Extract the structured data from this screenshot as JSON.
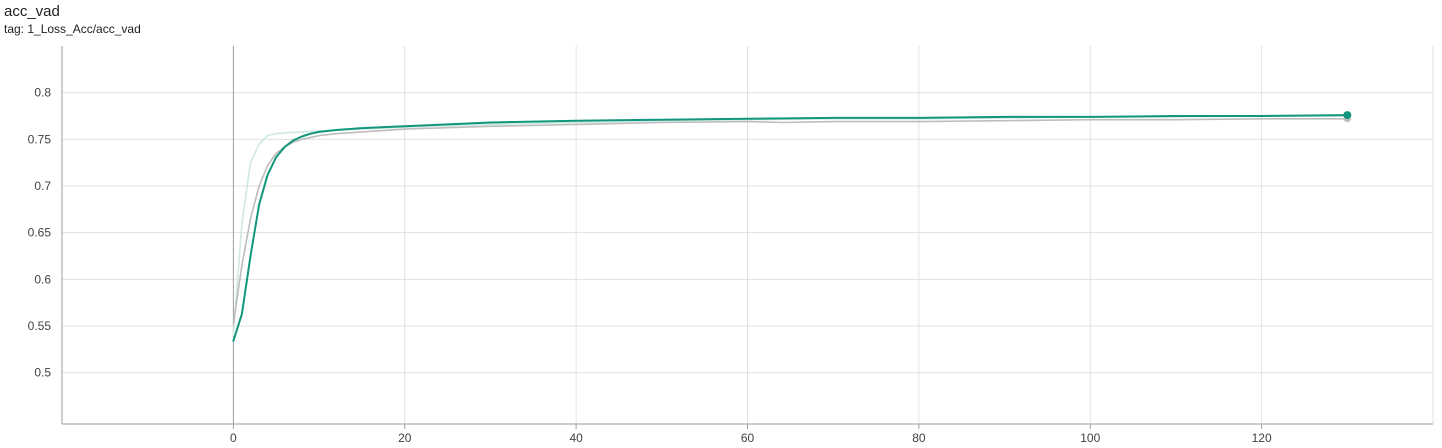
{
  "card": {
    "title": "acc_vad",
    "tag": "tag: 1_Loss_Acc/acc_vad"
  },
  "chart_data": {
    "type": "line",
    "title": "acc_vad",
    "xlabel": "",
    "ylabel": "",
    "xlim": [
      -20,
      140
    ],
    "ylim": [
      0.445,
      0.85
    ],
    "x_ticks": [
      0,
      20,
      40,
      60,
      80,
      100,
      120
    ],
    "y_ticks": [
      0.5,
      0.55,
      0.6,
      0.65,
      0.7,
      0.75,
      0.8
    ],
    "grid": true,
    "series": [
      {
        "role": "raw",
        "color": "#cfe9e3",
        "x": [
          0,
          1,
          2,
          3,
          4,
          5,
          6,
          8,
          10,
          15,
          20,
          30,
          40,
          50,
          60,
          70,
          80,
          90,
          100,
          110,
          120,
          130
        ],
        "y": [
          0.54,
          0.66,
          0.725,
          0.745,
          0.754,
          0.756,
          0.757,
          0.758,
          0.759,
          0.761,
          0.763,
          0.766,
          0.768,
          0.77,
          0.771,
          0.772,
          0.772,
          0.773,
          0.774,
          0.774,
          0.775,
          0.775
        ]
      },
      {
        "role": "smoothed",
        "color": "#bdbdbd",
        "x": [
          0,
          1,
          2,
          3,
          4,
          5,
          6,
          7,
          8,
          10,
          12,
          15,
          20,
          30,
          40,
          50,
          60,
          64,
          70,
          80,
          90,
          100,
          110,
          120,
          130
        ],
        "y": [
          0.553,
          0.615,
          0.665,
          0.7,
          0.722,
          0.735,
          0.742,
          0.747,
          0.75,
          0.754,
          0.756,
          0.758,
          0.761,
          0.764,
          0.766,
          0.768,
          0.769,
          0.768,
          0.769,
          0.769,
          0.77,
          0.771,
          0.771,
          0.772,
          0.772
        ]
      },
      {
        "role": "smoothed",
        "color": "#12967c",
        "x": [
          0,
          1,
          2,
          3,
          4,
          5,
          6,
          7,
          8,
          9,
          10,
          12,
          15,
          20,
          30,
          40,
          50,
          60,
          70,
          80,
          90,
          100,
          110,
          120,
          130
        ],
        "y": [
          0.534,
          0.563,
          0.625,
          0.68,
          0.712,
          0.731,
          0.742,
          0.749,
          0.753,
          0.756,
          0.758,
          0.76,
          0.762,
          0.764,
          0.768,
          0.77,
          0.771,
          0.772,
          0.773,
          0.773,
          0.774,
          0.774,
          0.775,
          0.775,
          0.776
        ]
      }
    ]
  }
}
